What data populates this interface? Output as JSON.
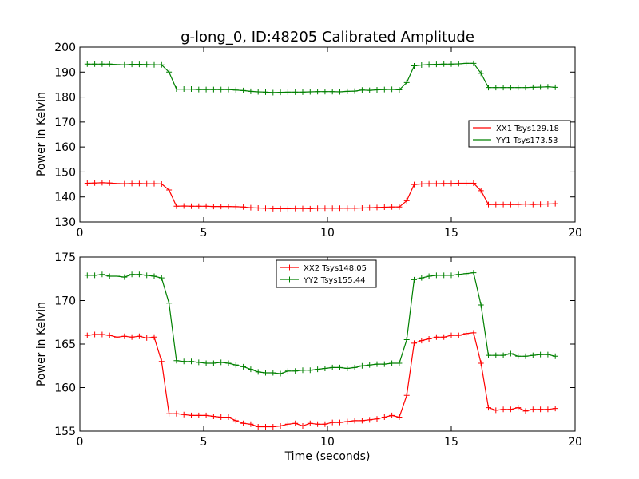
{
  "chart_data": [
    {
      "type": "line",
      "title": "g-long_0, ID:48205 Calibrated Amplitude",
      "xlabel": "",
      "ylabel": "Power in Kelvin",
      "xlim": [
        0,
        20
      ],
      "ylim": [
        130,
        200
      ],
      "xticks": [
        "0",
        "5",
        "10",
        "15",
        "20"
      ],
      "yticks": [
        "130",
        "140",
        "150",
        "160",
        "170",
        "180",
        "190",
        "200"
      ],
      "grid": false,
      "legend_position": "center-right",
      "x": [
        0.3,
        0.6,
        0.9,
        1.2,
        1.5,
        1.8,
        2.1,
        2.4,
        2.7,
        3.0,
        3.3,
        3.6,
        3.9,
        4.2,
        4.5,
        4.8,
        5.1,
        5.4,
        5.7,
        6.0,
        6.3,
        6.6,
        6.9,
        7.2,
        7.5,
        7.8,
        8.1,
        8.4,
        8.7,
        9.0,
        9.3,
        9.6,
        9.9,
        10.2,
        10.5,
        10.8,
        11.1,
        11.4,
        11.7,
        12.0,
        12.3,
        12.6,
        12.9,
        13.2,
        13.5,
        13.8,
        14.1,
        14.4,
        14.7,
        15.0,
        15.3,
        15.6,
        15.9,
        16.2,
        16.5,
        16.8,
        17.1,
        17.4,
        17.7,
        18.0,
        18.3,
        18.6,
        18.9,
        19.2
      ],
      "series": [
        {
          "name": "XX1 Tsys129.18",
          "color": "#ff0000",
          "values": [
            145.5,
            145.6,
            145.7,
            145.6,
            145.4,
            145.3,
            145.4,
            145.4,
            145.3,
            145.3,
            145.2,
            142.8,
            136.3,
            136.4,
            136.3,
            136.3,
            136.3,
            136.2,
            136.2,
            136.2,
            136.1,
            136.0,
            135.7,
            135.6,
            135.5,
            135.3,
            135.3,
            135.3,
            135.4,
            135.4,
            135.3,
            135.5,
            135.5,
            135.5,
            135.5,
            135.5,
            135.5,
            135.6,
            135.7,
            135.8,
            135.9,
            136.0,
            136.0,
            138.5,
            145.0,
            145.2,
            145.3,
            145.3,
            145.4,
            145.4,
            145.5,
            145.5,
            145.5,
            142.5,
            137.0,
            137.0,
            137.0,
            137.0,
            137.0,
            137.2,
            137.0,
            137.1,
            137.2,
            137.3
          ]
        },
        {
          "name": "YY1 Tsys173.53",
          "color": "#008000",
          "values": [
            193.2,
            193.2,
            193.2,
            193.2,
            193.0,
            192.9,
            193.1,
            193.1,
            193.0,
            192.9,
            192.9,
            190.0,
            183.2,
            183.2,
            183.2,
            183.0,
            183.0,
            183.0,
            183.0,
            183.0,
            182.8,
            182.6,
            182.3,
            182.1,
            182.0,
            181.8,
            181.9,
            182.0,
            182.0,
            182.0,
            182.1,
            182.2,
            182.2,
            182.2,
            182.1,
            182.3,
            182.4,
            182.8,
            182.7,
            182.9,
            183.0,
            183.1,
            182.9,
            185.8,
            192.5,
            192.8,
            193.0,
            193.1,
            193.2,
            193.2,
            193.3,
            193.5,
            193.5,
            189.5,
            183.8,
            183.8,
            183.8,
            183.8,
            183.8,
            183.8,
            183.9,
            184.0,
            184.1,
            183.9
          ]
        }
      ]
    },
    {
      "type": "line",
      "title": "",
      "xlabel": "Time (seconds)",
      "ylabel": "Power in Kelvin",
      "xlim": [
        0,
        20
      ],
      "ylim": [
        155,
        175
      ],
      "xticks": [
        "0",
        "5",
        "10",
        "15",
        "20"
      ],
      "yticks": [
        "155",
        "160",
        "165",
        "170",
        "175"
      ],
      "grid": false,
      "legend_position": "top-center",
      "x": [
        0.3,
        0.6,
        0.9,
        1.2,
        1.5,
        1.8,
        2.1,
        2.4,
        2.7,
        3.0,
        3.3,
        3.6,
        3.9,
        4.2,
        4.5,
        4.8,
        5.1,
        5.4,
        5.7,
        6.0,
        6.3,
        6.6,
        6.9,
        7.2,
        7.5,
        7.8,
        8.1,
        8.4,
        8.7,
        9.0,
        9.3,
        9.6,
        9.9,
        10.2,
        10.5,
        10.8,
        11.1,
        11.4,
        11.7,
        12.0,
        12.3,
        12.6,
        12.9,
        13.2,
        13.5,
        13.8,
        14.1,
        14.4,
        14.7,
        15.0,
        15.3,
        15.6,
        15.9,
        16.2,
        16.5,
        16.8,
        17.1,
        17.4,
        17.7,
        18.0,
        18.3,
        18.6,
        18.9,
        19.2
      ],
      "series": [
        {
          "name": "XX2 Tsys148.05",
          "color": "#ff0000",
          "values": [
            166.0,
            166.1,
            166.1,
            166.0,
            165.8,
            165.9,
            165.8,
            165.9,
            165.7,
            165.8,
            163.0,
            157.0,
            157.0,
            156.9,
            156.8,
            156.8,
            156.8,
            156.7,
            156.6,
            156.6,
            156.2,
            155.9,
            155.8,
            155.5,
            155.5,
            155.5,
            155.6,
            155.8,
            155.9,
            155.6,
            155.9,
            155.8,
            155.8,
            156.0,
            156.0,
            156.1,
            156.2,
            156.2,
            156.3,
            156.4,
            156.6,
            156.8,
            156.6,
            159.1,
            165.1,
            165.4,
            165.6,
            165.8,
            165.8,
            166.0,
            166.0,
            166.2,
            166.3,
            162.8,
            157.7,
            157.4,
            157.5,
            157.5,
            157.7,
            157.3,
            157.5,
            157.5,
            157.5,
            157.6
          ]
        },
        {
          "name": "YY2 Tsys155.44",
          "color": "#008000",
          "values": [
            172.9,
            172.9,
            173.0,
            172.8,
            172.8,
            172.7,
            173.0,
            173.0,
            172.9,
            172.8,
            172.6,
            169.7,
            163.1,
            163.0,
            163.0,
            162.9,
            162.8,
            162.8,
            162.9,
            162.8,
            162.6,
            162.4,
            162.1,
            161.8,
            161.7,
            161.7,
            161.6,
            161.9,
            161.9,
            162.0,
            162.0,
            162.1,
            162.2,
            162.3,
            162.3,
            162.2,
            162.3,
            162.5,
            162.6,
            162.7,
            162.7,
            162.8,
            162.8,
            165.5,
            172.4,
            172.6,
            172.8,
            172.9,
            172.9,
            172.9,
            173.0,
            173.1,
            173.2,
            169.5,
            163.7,
            163.7,
            163.7,
            163.9,
            163.6,
            163.6,
            163.7,
            163.8,
            163.8,
            163.6
          ]
        }
      ]
    }
  ]
}
